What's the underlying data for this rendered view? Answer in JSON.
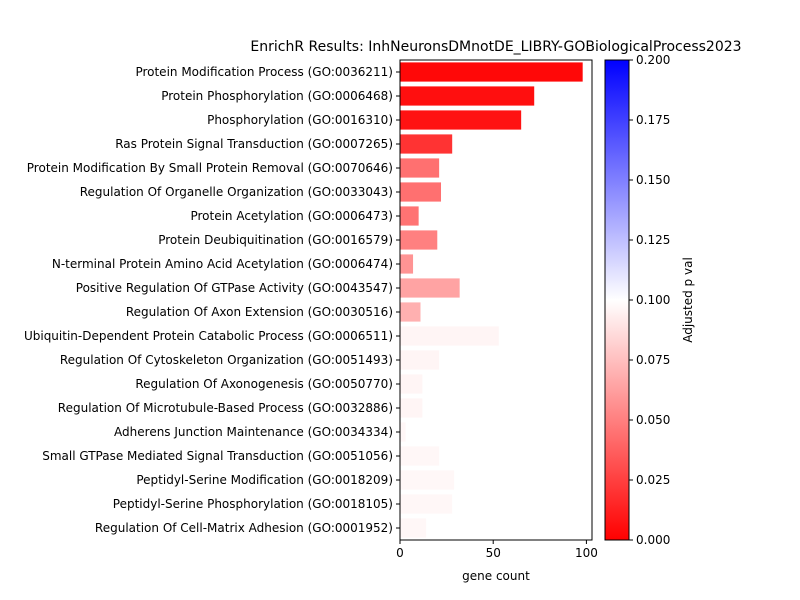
{
  "chart_data": {
    "type": "bar",
    "orientation": "horizontal",
    "title": "EnrichR Results: InhNeuronsDMnotDE_LIBRY-GOBiologicalProcess2023",
    "xlabel": "gene count",
    "ylabel": "",
    "xlim": [
      0,
      103
    ],
    "xticks": [
      0,
      50,
      100
    ],
    "categories": [
      "Protein Modification Process (GO:0036211)",
      "Protein Phosphorylation (GO:0006468)",
      "Phosphorylation (GO:0016310)",
      "Ras Protein Signal Transduction (GO:0007265)",
      "Protein Modification By Small Protein Removal (GO:0070646)",
      "Regulation Of Organelle Organization (GO:0033043)",
      "Protein Acetylation (GO:0006473)",
      "Protein Deubiquitination (GO:0016579)",
      "N-terminal Protein Amino Acid Acetylation (GO:0006474)",
      "Positive Regulation Of GTPase Activity (GO:0043547)",
      "Regulation Of Axon Extension (GO:0030516)",
      "Ubiquitin-Dependent Protein Catabolic Process (GO:0006511)",
      "Regulation Of Cytoskeleton Organization (GO:0051493)",
      "Regulation Of Axonogenesis (GO:0050770)",
      "Regulation Of Microtubule-Based Process (GO:0032886)",
      "Adherens Junction Maintenance (GO:0034334)",
      "Small GTPase Mediated Signal Transduction (GO:0051056)",
      "Peptidyl-Serine Modification (GO:0018209)",
      "Peptidyl-Serine Phosphorylation (GO:0018105)",
      "Regulation Of Cell-Matrix Adhesion (GO:0001952)"
    ],
    "values": [
      98,
      72,
      65,
      28,
      21,
      22,
      10,
      20,
      7,
      32,
      11,
      53,
      21,
      12,
      12,
      3,
      21,
      29,
      28,
      14
    ],
    "adjusted_p": [
      0.003,
      0.006,
      0.007,
      0.02,
      0.044,
      0.044,
      0.045,
      0.05,
      0.058,
      0.064,
      0.069,
      0.096,
      0.096,
      0.096,
      0.096,
      0.097,
      0.097,
      0.097,
      0.097,
      0.097
    ],
    "colorbar": {
      "label": "Adjusted p val",
      "range": [
        0.0,
        0.2
      ],
      "ticks": [
        "0.000",
        "0.025",
        "0.050",
        "0.075",
        "0.100",
        "0.125",
        "0.150",
        "0.175",
        "0.200"
      ],
      "colormap": "bwr_r",
      "colors": {
        "low": "#ff0000",
        "mid": "#ffffff",
        "high": "#0000ff"
      }
    },
    "grid": false
  }
}
